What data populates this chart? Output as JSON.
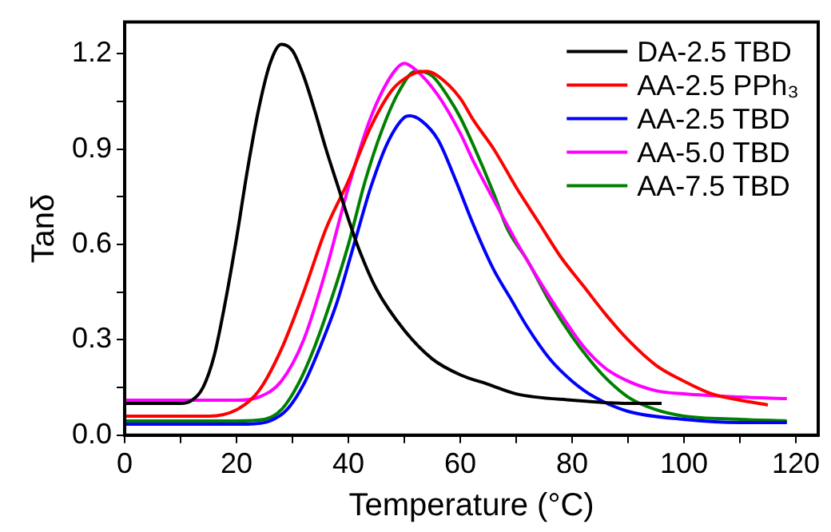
{
  "chart_data": {
    "type": "line",
    "xlabel": "Temperature (°C)",
    "ylabel": "Tanδ",
    "xlim": [
      0,
      124
    ],
    "ylim": [
      0,
      1.3
    ],
    "xticks": [
      0,
      {
        "value": 10,
        "label": null
      },
      20,
      {
        "value": 30,
        "label": null
      },
      40,
      {
        "value": 50,
        "label": null
      },
      60,
      {
        "value": 70,
        "label": null
      },
      80,
      {
        "value": 90,
        "label": null
      },
      100,
      {
        "value": 110,
        "label": null
      },
      120
    ],
    "yticks": [
      {
        "value": 0,
        "label": "0.0"
      },
      {
        "value": 0.15,
        "label": null
      },
      {
        "value": 0.3,
        "label": "0.3"
      },
      {
        "value": 0.45,
        "label": null
      },
      {
        "value": 0.6,
        "label": "0.6"
      },
      {
        "value": 0.75,
        "label": null
      },
      {
        "value": 0.9,
        "label": "0.9"
      },
      {
        "value": 1.05,
        "label": null
      },
      {
        "value": 1.2,
        "label": "1.2"
      }
    ],
    "grid": false,
    "legend": "top right",
    "marker": "none",
    "line_style": "solid",
    "series": [
      {
        "name": "DA-2.5 TBD",
        "color": "#000000",
        "x": [
          0,
          10,
          12,
          14,
          16,
          18,
          20,
          22,
          24,
          26,
          28,
          30,
          32,
          34,
          36,
          38,
          40,
          42,
          45,
          50,
          55,
          60,
          65,
          70,
          80,
          90,
          96
        ],
        "values": [
          0.1,
          0.1,
          0.11,
          0.15,
          0.25,
          0.42,
          0.62,
          0.84,
          1.03,
          1.17,
          1.23,
          1.21,
          1.13,
          1.02,
          0.9,
          0.79,
          0.68,
          0.58,
          0.46,
          0.33,
          0.24,
          0.19,
          0.16,
          0.13,
          0.11,
          0.1,
          0.1
        ]
      },
      {
        "name": "AA-2.5 PPh₃",
        "color": "#ff0000",
        "x": [
          0,
          15,
          20,
          24,
          28,
          32,
          36,
          40,
          44,
          48,
          52,
          54,
          56,
          60,
          62.4,
          66,
          70,
          74,
          78,
          82,
          86,
          90,
          95,
          100,
          105,
          110,
          115
        ],
        "values": [
          0.06,
          0.06,
          0.08,
          0.14,
          0.27,
          0.45,
          0.65,
          0.8,
          0.97,
          1.09,
          1.14,
          1.145,
          1.13,
          1.06,
          0.99,
          0.9,
          0.78,
          0.67,
          0.56,
          0.47,
          0.38,
          0.3,
          0.22,
          0.17,
          0.13,
          0.11,
          0.095
        ]
      },
      {
        "name": "AA-2.5 TBD",
        "color": "#0000ff",
        "x": [
          0,
          22,
          26,
          29,
          32,
          35,
          38,
          41,
          44,
          47,
          50,
          51,
          53,
          56,
          59,
          62.4,
          66,
          69,
          72,
          76,
          80,
          84,
          90,
          100,
          110,
          118.4
        ],
        "values": [
          0.035,
          0.035,
          0.045,
          0.08,
          0.16,
          0.28,
          0.42,
          0.6,
          0.78,
          0.92,
          1.0,
          1.005,
          0.99,
          0.93,
          0.81,
          0.66,
          0.52,
          0.43,
          0.34,
          0.24,
          0.17,
          0.12,
          0.075,
          0.05,
          0.04,
          0.04
        ]
      },
      {
        "name": "AA-5.0 TBD",
        "color": "#ff00ff",
        "x": [
          0,
          20,
          24,
          28,
          32,
          36,
          40,
          44,
          48,
          50,
          52,
          56,
          60,
          62.4,
          66,
          70,
          74,
          78,
          82,
          86,
          90,
          95,
          100,
          110,
          118.4
        ],
        "values": [
          0.11,
          0.11,
          0.12,
          0.17,
          0.3,
          0.52,
          0.78,
          1.0,
          1.14,
          1.17,
          1.15,
          1.07,
          0.95,
          0.86,
          0.74,
          0.61,
          0.49,
          0.38,
          0.28,
          0.21,
          0.17,
          0.14,
          0.13,
          0.12,
          0.115
        ]
      },
      {
        "name": "AA-7.5 TBD",
        "color": "#008000",
        "x": [
          0,
          20,
          25,
          28,
          31,
          34,
          37,
          40,
          43,
          46,
          49,
          52,
          55,
          58,
          60,
          62.4,
          66,
          68.4,
          72,
          76,
          80,
          83,
          86,
          90,
          95,
          100,
          110,
          118.4
        ],
        "values": [
          0.045,
          0.045,
          0.05,
          0.08,
          0.16,
          0.28,
          0.43,
          0.6,
          0.8,
          0.96,
          1.08,
          1.145,
          1.13,
          1.06,
          1.0,
          0.91,
          0.76,
          0.65,
          0.55,
          0.42,
          0.31,
          0.24,
          0.18,
          0.12,
          0.08,
          0.06,
          0.05,
          0.045
        ]
      }
    ]
  }
}
